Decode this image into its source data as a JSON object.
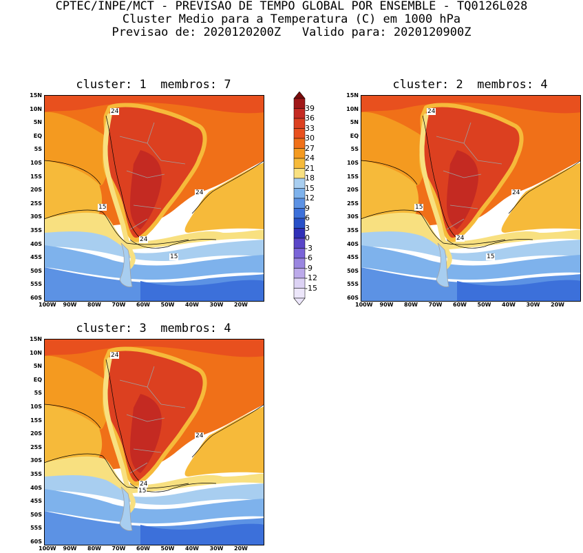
{
  "header": {
    "line1": "CPTEC/INPE/MCT - PREVISAO DE TEMPO GLOBAL POR ENSEMBLE - TQ0126L028",
    "line2": "Cluster Medio para a Temperatura (C) em 1000 hPa",
    "line3": "Previsao de: 2020120200Z   Valido para: 2020120900Z"
  },
  "panels": [
    {
      "title": "cluster: 1  membros: 7",
      "contour_labels": [
        "24",
        "24",
        "15",
        "24",
        "15"
      ]
    },
    {
      "title": "cluster: 2  membros: 4",
      "contour_labels": [
        "24",
        "24",
        "15",
        "24",
        "15"
      ]
    },
    {
      "title": "cluster: 3  membros: 4",
      "contour_labels": [
        "24",
        "24",
        "24",
        "15"
      ]
    }
  ],
  "axes": {
    "lat_ticks": [
      "15N",
      "10N",
      "5N",
      "EQ",
      "5S",
      "10S",
      "15S",
      "20S",
      "25S",
      "30S",
      "35S",
      "40S",
      "45S",
      "50S",
      "55S",
      "60S"
    ],
    "lon_ticks": [
      "100W",
      "90W",
      "80W",
      "70W",
      "60W",
      "50W",
      "40W",
      "30W",
      "20W"
    ]
  },
  "colorbar": {
    "levels": [
      "39",
      "36",
      "33",
      "30",
      "27",
      "24",
      "21",
      "18",
      "15",
      "12",
      "9",
      "6",
      "3",
      "0",
      "-3",
      "-6",
      "-9",
      "-12",
      "-15"
    ],
    "colors": [
      "#a01818",
      "#c42a22",
      "#dc4020",
      "#e8501e",
      "#f07018",
      "#f49a20",
      "#f6ba3a",
      "#f8e080",
      "#a8cef0",
      "#7eb2ec",
      "#5c92e4",
      "#3c70da",
      "#2850c8",
      "#3030b8",
      "#5a46c8",
      "#7a64d8",
      "#9a86e0",
      "#bcaaea",
      "#dcd2f4"
    ],
    "top_color": "#7a0c0c",
    "bottom_color": "#ece6fa"
  },
  "map_colors": {
    "ocean_warm": "#f07018",
    "ocean_hot": "#e8501e",
    "ocean_21": "#f49a20",
    "ocean_18": "#f6ba3a",
    "pale_15": "#f8e080",
    "cool_12": "#a8cef0",
    "cool_9": "#7eb2ec",
    "cool_6": "#5c92e4",
    "cold_3": "#3c70da",
    "land_hot": "#dc4020",
    "land_very_hot": "#c42a22",
    "border": "#a0a0a0"
  }
}
